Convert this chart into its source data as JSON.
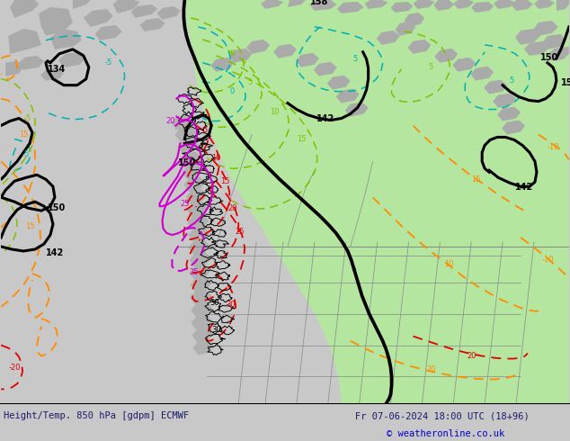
{
  "title_left": "Height/Temp. 850 hPa [gdpm] ECMWF",
  "title_right": "Fr 07-06-2024 18:00 UTC (18+96)",
  "copyright": "© weatheronline.co.uk",
  "bg_color": "#c8c8c8",
  "map_bg": "#c8c8c8",
  "green_color": "#b4e6a0",
  "gray_land": "#aaaaaa",
  "footer_bg": "#d8d8d8",
  "footer_text_color": "#1a1a6e",
  "copyright_color": "#0000cc",
  "black_lw": 2.2,
  "orange_lw": 1.3,
  "green_lw": 1.1,
  "cyan_lw": 1.1,
  "red_lw": 1.3,
  "magenta_lw": 1.5,
  "thin_black_lw": 1.0
}
